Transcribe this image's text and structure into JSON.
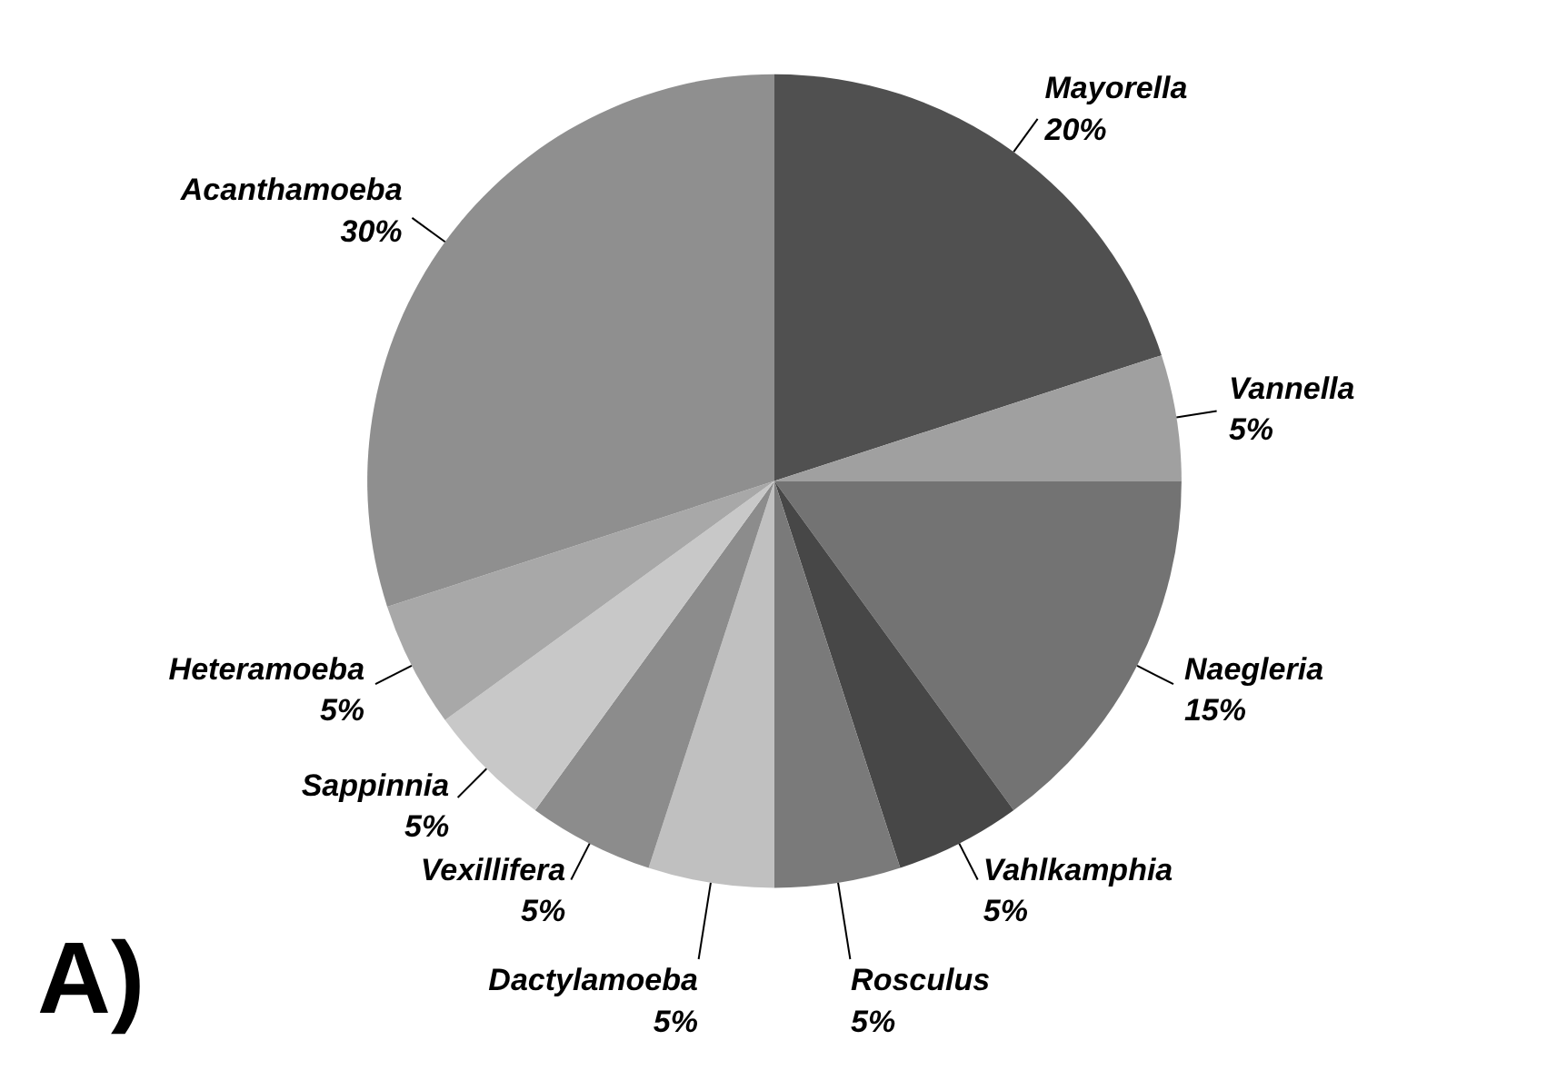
{
  "chart_data": {
    "type": "pie",
    "categories": [
      "Mayorella",
      "Vannella",
      "Naegleria",
      "Vahlkamphia",
      "Rosculus",
      "Dactylamoeba",
      "Vexillifera",
      "Sappinnia",
      "Heteramoeba",
      "Acanthamoeba"
    ],
    "values": [
      20,
      5,
      15,
      5,
      5,
      5,
      5,
      5,
      5,
      30
    ],
    "colors": [
      "#505050",
      "#a0a0a0",
      "#737373",
      "#474747",
      "#7a7a7a",
      "#c0c0c0",
      "#8c8c8c",
      "#c8c8c8",
      "#a8a8a8",
      "#8f8f8f"
    ],
    "value_labels": [
      "20%",
      "5%",
      "15%",
      "5%",
      "5%",
      "5%",
      "5%",
      "5%",
      "5%",
      "30%"
    ],
    "annotations": [
      "A)"
    ]
  }
}
